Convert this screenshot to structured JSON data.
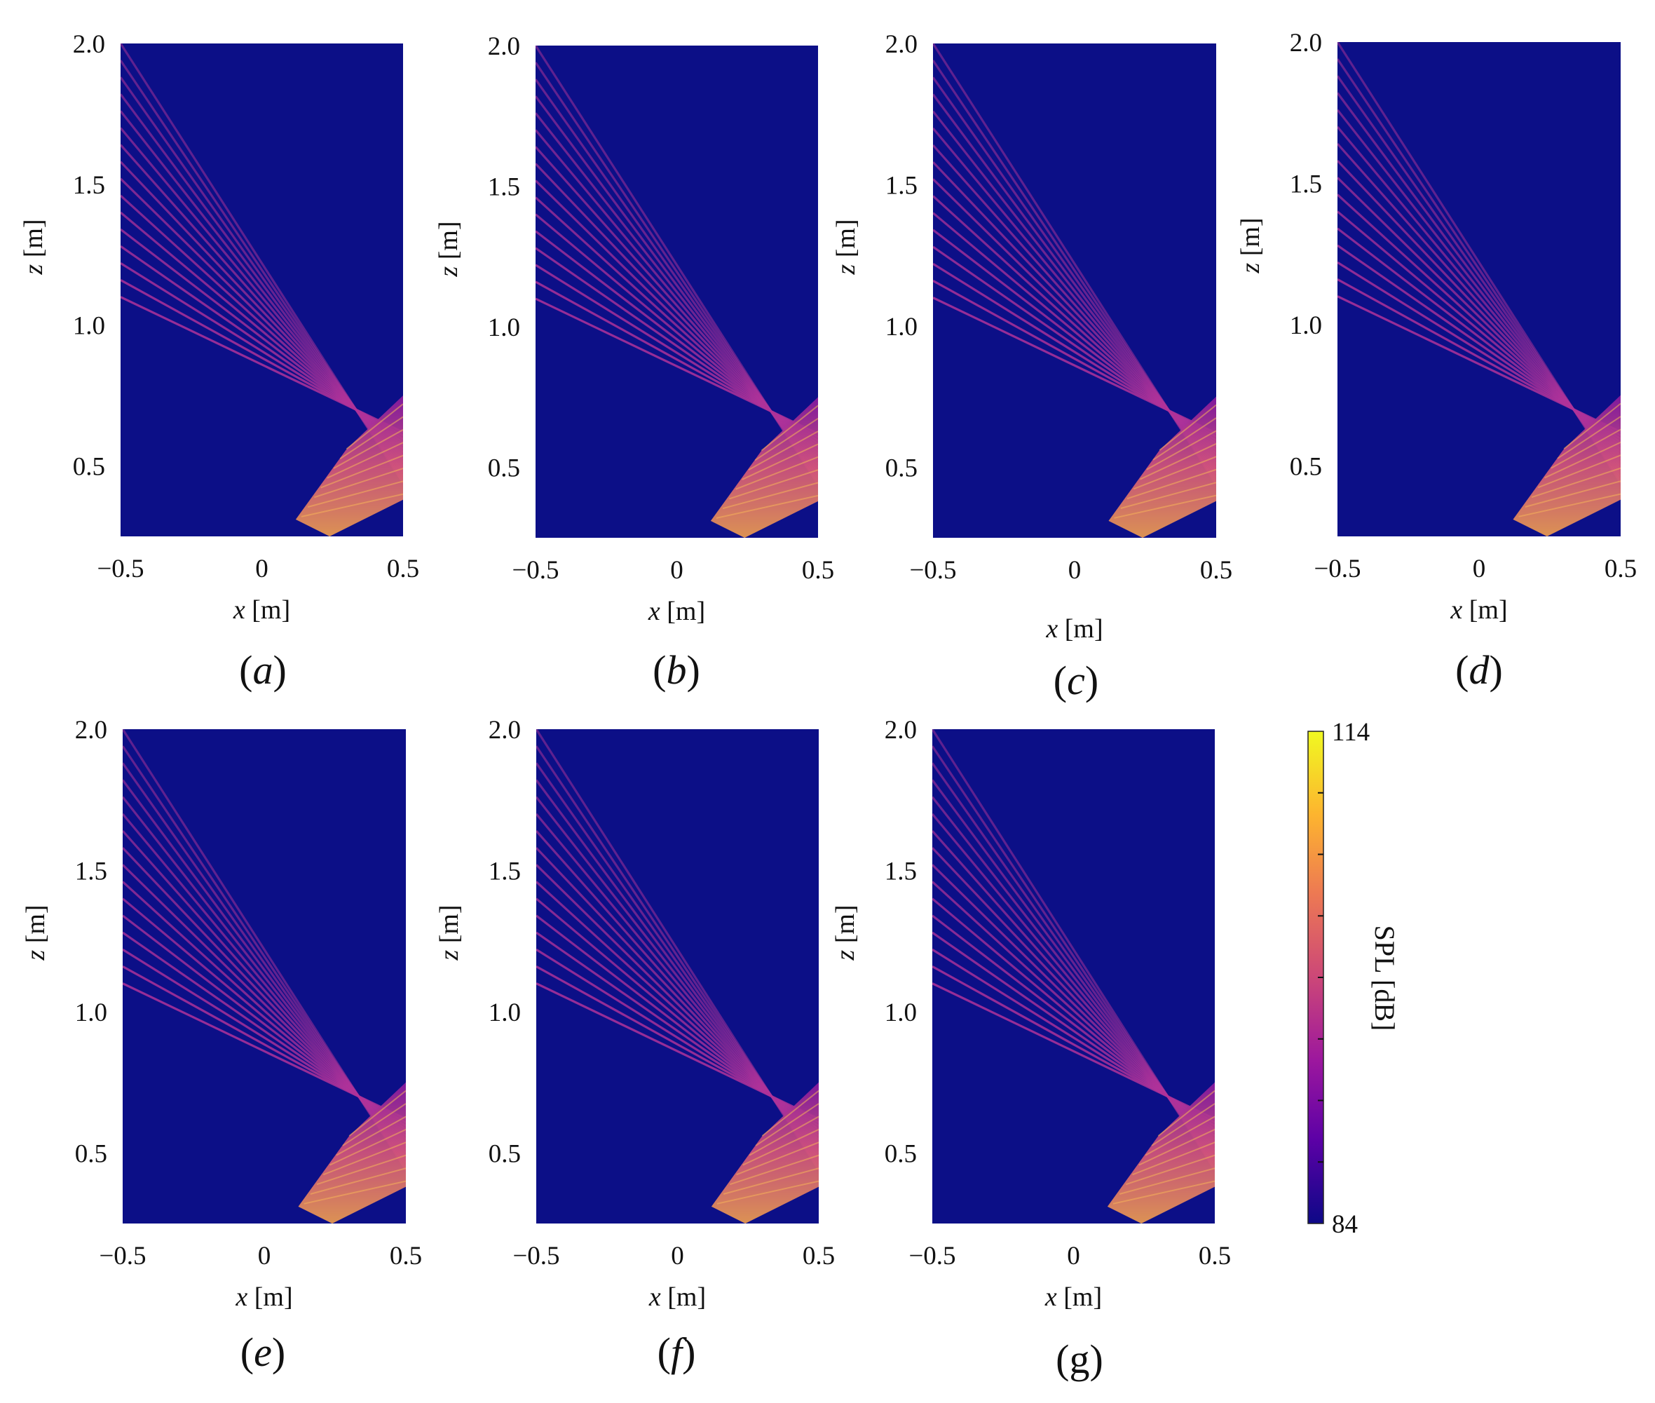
{
  "chart_data": {
    "type": "heatmap",
    "x_axis": {
      "label_var": "x",
      "label_unit": "[m]",
      "ticks": [
        "−0.5",
        "0",
        "0.5"
      ],
      "range": [
        -0.5,
        0.5
      ]
    },
    "z_axis": {
      "label_var": "z",
      "label_unit": "[m]",
      "ticks": [
        "0.5",
        "1.0",
        "1.5",
        "2.0"
      ],
      "range": [
        0.25,
        2.0
      ]
    },
    "panels": [
      {
        "id": "a",
        "label_letter": "a"
      },
      {
        "id": "b",
        "label_letter": "b"
      },
      {
        "id": "c",
        "label_letter": "c"
      },
      {
        "id": "d",
        "label_letter": "d"
      },
      {
        "id": "e",
        "label_letter": "e"
      },
      {
        "id": "f",
        "label_letter": "f"
      },
      {
        "id": "g",
        "label_letter": "g",
        "upright": true
      }
    ],
    "colorbar": {
      "label": "SPL [dB]",
      "min_label": "84",
      "max_label": "114",
      "min": 84,
      "max": 114
    },
    "colors": {
      "background": "#0c0f87",
      "colormap": [
        "#0d0887",
        "#5c01a6",
        "#9c179e",
        "#cc4778",
        "#ed7953",
        "#fdb42f",
        "#f0f921"
      ]
    }
  }
}
